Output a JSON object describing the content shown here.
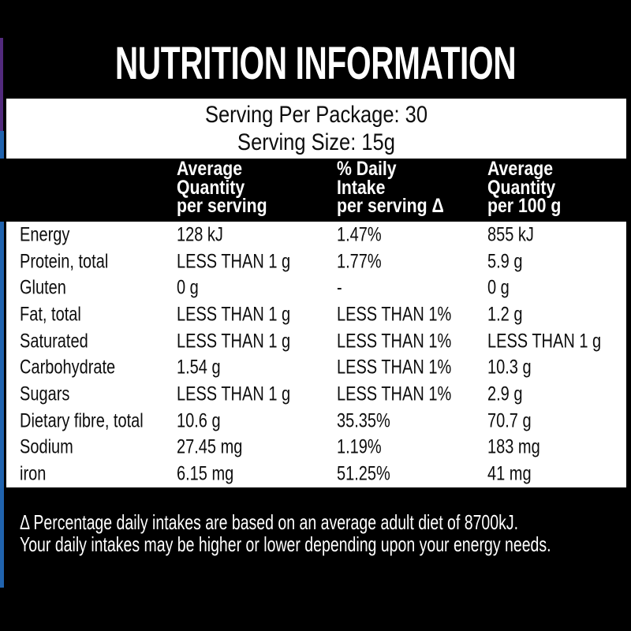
{
  "colors": {
    "background": "#000000",
    "panel": "#ffffff",
    "stripe_purple": "#522a7d",
    "stripe_blue": "#2063ae"
  },
  "label": {
    "title": "NUTRITION INFORMATION",
    "serving_per_package": "Serving Per Package: 30",
    "serving_size": "Serving Size: 15g",
    "columns": [
      {
        "lines": [
          "Average",
          "Quantity",
          "per serving"
        ]
      },
      {
        "lines": [
          "% Daily",
          "Intake",
          "per serving Δ"
        ]
      },
      {
        "lines": [
          "Average",
          "Quantity",
          "per 100 g"
        ]
      }
    ],
    "rows": [
      {
        "nutrient": "Energy",
        "per_serving": "128 kJ",
        "daily_intake": "1.47%",
        "per_100g": "855 kJ"
      },
      {
        "nutrient": "Protein, total",
        "per_serving": "LESS THAN 1 g",
        "daily_intake": "1.77%",
        "per_100g": "5.9 g"
      },
      {
        "nutrient": "Gluten",
        "per_serving": "0 g",
        "daily_intake": "-",
        "per_100g": "0 g"
      },
      {
        "nutrient": "Fat, total",
        "per_serving": "LESS THAN 1 g",
        "daily_intake": "LESS THAN 1%",
        "per_100g": "1.2 g"
      },
      {
        "nutrient": "Saturated",
        "per_serving": "LESS THAN 1 g",
        "daily_intake": "LESS THAN 1%",
        "per_100g": "LESS THAN 1 g"
      },
      {
        "nutrient": "Carbohydrate",
        "per_serving": "1.54 g",
        "daily_intake": "LESS THAN 1%",
        "per_100g": "10.3 g"
      },
      {
        "nutrient": "Sugars",
        "per_serving": "LESS THAN 1 g",
        "daily_intake": "LESS THAN 1%",
        "per_100g": "2.9 g"
      },
      {
        "nutrient": "Dietary fibre, total",
        "per_serving": "10.6 g",
        "daily_intake": "35.35%",
        "per_100g": "70.7 g"
      },
      {
        "nutrient": "Sodium",
        "per_serving": "27.45 mg",
        "daily_intake": "1.19%",
        "per_100g": "183 mg"
      },
      {
        "nutrient": "iron",
        "per_serving": "6.15 mg",
        "daily_intake": "51.25%",
        "per_100g": "41 mg"
      }
    ],
    "footnote_line1": "Δ Percentage daily intakes are based on an average adult diet of 8700kJ.",
    "footnote_line2": "Your daily intakes may be higher or lower depending upon your energy needs."
  }
}
